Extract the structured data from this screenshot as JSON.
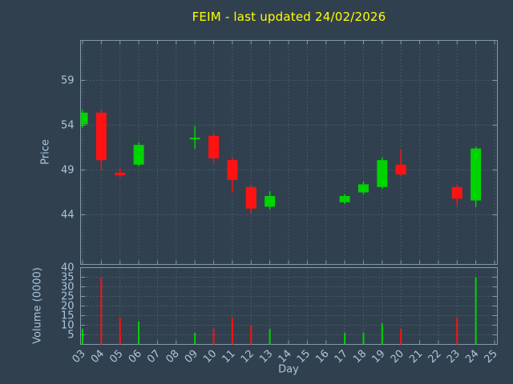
{
  "colors": {
    "background": "#31404f",
    "title": "#ffff00",
    "axis_text": "#a9c6dd",
    "border": "#8299a9",
    "grid": "#5c6f7e",
    "up": "#00d400",
    "down": "#ff1212"
  },
  "chart_data": {
    "type": "candlestick",
    "title": "FEIM - last updated 24/02/2026",
    "xlabel": "Day",
    "price_axis": {
      "label": "Price",
      "ticks": [
        44,
        49,
        54,
        59
      ],
      "visible_range": [
        38.3,
        63.4
      ]
    },
    "volume_axis": {
      "label": "Volume (0000)",
      "ticks": [
        5,
        10,
        15,
        20,
        25,
        30,
        35,
        40
      ],
      "range": [
        0,
        40
      ]
    },
    "x_ticks": [
      "03",
      "04",
      "05",
      "06",
      "07",
      "08",
      "09",
      "10",
      "11",
      "12",
      "13",
      "14",
      "15",
      "16",
      "17",
      "18",
      "19",
      "20",
      "21",
      "22",
      "23",
      "24",
      "25"
    ],
    "grid": true,
    "candles": [
      {
        "day": "03",
        "open": 54.1,
        "high": 55.7,
        "low": 53.7,
        "close": 55.4,
        "volume": 8
      },
      {
        "day": "04",
        "open": 55.4,
        "high": 55.7,
        "low": 49.0,
        "close": 50.1,
        "volume": 35
      },
      {
        "day": "05",
        "open": 48.7,
        "high": 49.3,
        "low": 48.2,
        "close": 48.4,
        "volume": 14
      },
      {
        "day": "06",
        "open": 49.6,
        "high": 52.1,
        "low": 49.4,
        "close": 51.8,
        "volume": 12
      },
      {
        "day": "09",
        "open": 52.6,
        "high": 53.9,
        "low": 51.4,
        "close": 52.6,
        "volume": 6
      },
      {
        "day": "10",
        "open": 52.8,
        "high": 53.0,
        "low": 49.7,
        "close": 50.3,
        "volume": 8
      },
      {
        "day": "11",
        "open": 50.1,
        "high": 50.4,
        "low": 46.5,
        "close": 47.9,
        "volume": 14
      },
      {
        "day": "12",
        "open": 47.1,
        "high": 47.3,
        "low": 44.1,
        "close": 44.7,
        "volume": 10
      },
      {
        "day": "13",
        "open": 44.9,
        "high": 46.6,
        "low": 44.6,
        "close": 46.1,
        "volume": 8
      },
      {
        "day": "17",
        "open": 45.4,
        "high": 46.3,
        "low": 45.2,
        "close": 46.1,
        "volume": 6
      },
      {
        "day": "18",
        "open": 46.5,
        "high": 47.7,
        "low": 46.3,
        "close": 47.4,
        "volume": 6
      },
      {
        "day": "19",
        "open": 47.1,
        "high": 50.4,
        "low": 46.9,
        "close": 50.1,
        "volume": 11
      },
      {
        "day": "20",
        "open": 49.6,
        "high": 51.3,
        "low": 48.3,
        "close": 48.5,
        "volume": 8
      },
      {
        "day": "23",
        "open": 47.1,
        "high": 47.4,
        "low": 45.0,
        "close": 45.8,
        "volume": 14
      },
      {
        "day": "24",
        "open": 45.6,
        "high": 51.6,
        "low": 44.9,
        "close": 51.4,
        "volume": 35
      }
    ]
  }
}
